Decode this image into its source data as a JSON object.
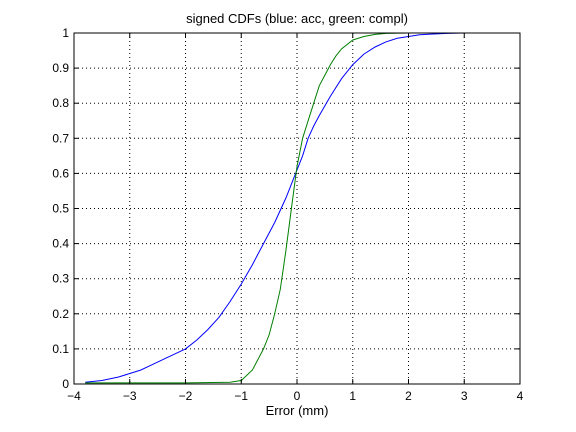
{
  "chart_data": {
    "type": "line",
    "title": "signed CDFs (blue: acc, green: compl)",
    "xlabel": "Error (mm)",
    "ylabel": "",
    "xlim": [
      -4,
      4
    ],
    "ylim": [
      0,
      1
    ],
    "xticks": [
      "−4",
      "−3",
      "−2",
      "−1",
      "0",
      "1",
      "2",
      "3",
      "4"
    ],
    "yticks": [
      "0",
      "0.1",
      "0.2",
      "0.3",
      "0.4",
      "0.5",
      "0.6",
      "0.7",
      "0.8",
      "0.9",
      "1"
    ],
    "grid": true,
    "series": [
      {
        "color": "#0000ff",
        "x": [
          -3.8,
          -3.5,
          -3.2,
          -3.0,
          -2.8,
          -2.6,
          -2.4,
          -2.2,
          -2.0,
          -1.8,
          -1.6,
          -1.4,
          -1.2,
          -1.0,
          -0.8,
          -0.6,
          -0.4,
          -0.2,
          0.0,
          0.1,
          0.2,
          0.3,
          0.4,
          0.6,
          0.8,
          1.0,
          1.2,
          1.4,
          1.6,
          1.8,
          2.0,
          2.2,
          2.4,
          2.7,
          3.0,
          3.5,
          4.0
        ],
        "y": [
          0.005,
          0.01,
          0.02,
          0.03,
          0.04,
          0.055,
          0.07,
          0.085,
          0.1,
          0.125,
          0.155,
          0.19,
          0.235,
          0.285,
          0.34,
          0.4,
          0.46,
          0.53,
          0.61,
          0.65,
          0.7,
          0.735,
          0.765,
          0.82,
          0.87,
          0.91,
          0.94,
          0.96,
          0.975,
          0.985,
          0.99,
          0.995,
          0.997,
          0.999,
          1.0,
          1.0,
          1.0
        ]
      },
      {
        "color": "#008000",
        "x": [
          -3.8,
          -3.0,
          -2.0,
          -1.2,
          -1.0,
          -0.8,
          -0.6,
          -0.5,
          -0.4,
          -0.3,
          -0.2,
          -0.1,
          0.0,
          0.1,
          0.2,
          0.3,
          0.4,
          0.5,
          0.6,
          0.7,
          0.8,
          1.0,
          1.2,
          1.4,
          1.6,
          2.0,
          4.0
        ],
        "y": [
          0.003,
          0.003,
          0.003,
          0.005,
          0.01,
          0.04,
          0.1,
          0.14,
          0.2,
          0.27,
          0.38,
          0.5,
          0.62,
          0.7,
          0.75,
          0.8,
          0.85,
          0.88,
          0.91,
          0.935,
          0.955,
          0.98,
          0.99,
          0.996,
          0.999,
          1.0,
          1.0
        ]
      }
    ]
  }
}
